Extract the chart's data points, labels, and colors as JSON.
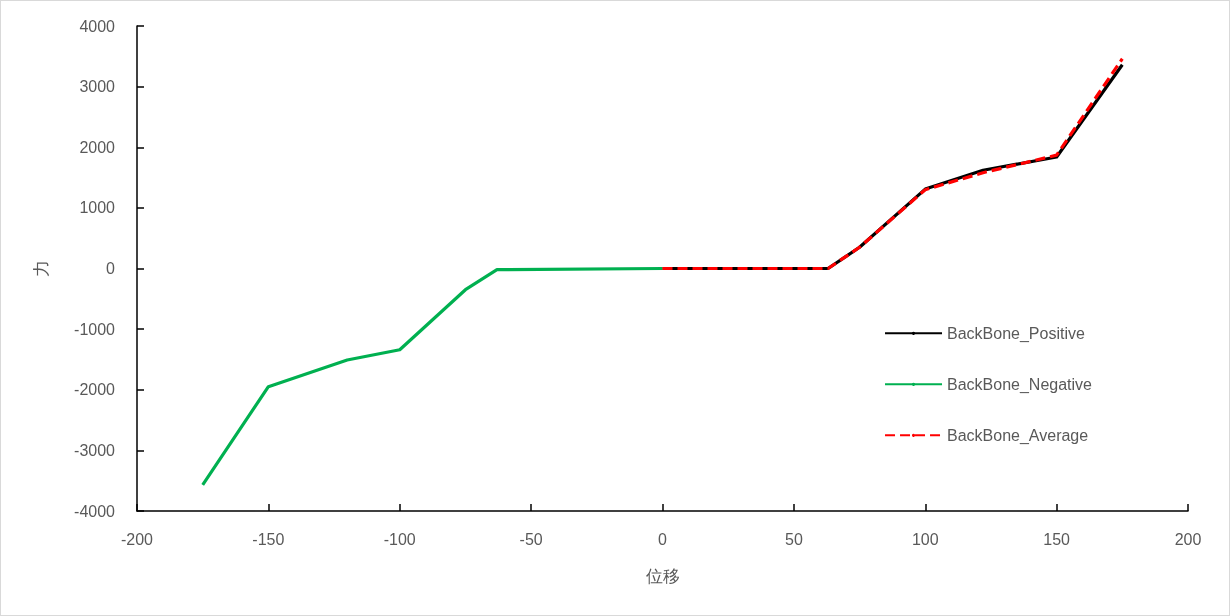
{
  "chart_data": {
    "type": "line",
    "xlabel": "位移",
    "ylabel": "力",
    "xlim": [
      -200,
      200
    ],
    "xticks": [
      -200,
      -150,
      -100,
      -50,
      0,
      50,
      100,
      150,
      200
    ],
    "ylim": [
      -4000,
      4000
    ],
    "yticks": [
      -4000,
      -3000,
      -2000,
      -1000,
      0,
      1000,
      2000,
      3000,
      4000
    ],
    "grid": false,
    "legend": "right",
    "marker": "none",
    "series": [
      {
        "name": "BackBone_Positive",
        "color": "#000000",
        "line_style": "solid",
        "x": [
          0,
          63,
          75,
          100,
          122,
          150,
          175
        ],
        "values": [
          0,
          0,
          350,
          1310,
          1620,
          1840,
          3360
        ]
      },
      {
        "name": "BackBone_Negative",
        "color": "#00b050",
        "line_style": "solid",
        "x": [
          -175,
          -150,
          -120,
          -100,
          -75,
          -63,
          0
        ],
        "values": [
          -3570,
          -1950,
          -1510,
          -1340,
          -350,
          -20,
          0
        ]
      },
      {
        "name": "BackBone_Average",
        "color": "#ff0000",
        "line_style": "dashed",
        "x": [
          0,
          63,
          75,
          100,
          122,
          150,
          175
        ],
        "values": [
          0,
          0,
          350,
          1300,
          1580,
          1870,
          3460
        ]
      }
    ]
  }
}
